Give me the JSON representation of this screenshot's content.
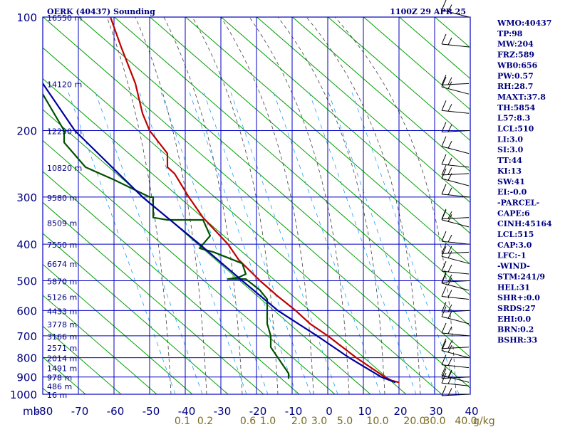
{
  "header": {
    "left_title": "OERK (40437) Sounding",
    "right_title": "1100Z 29 APR 25"
  },
  "chart_data": {
    "type": "line",
    "chart_kind": "skew-T log-P sounding",
    "x_unit_corner_label": "mb",
    "x_ticks": [
      -80,
      -70,
      -60,
      -50,
      -40,
      -30,
      -20,
      -10,
      0,
      10,
      20,
      30,
      40
    ],
    "x_tick_labels": [
      "-80",
      "-70",
      "-60",
      "-50",
      "-40",
      "-30",
      "-20",
      "-10",
      "0",
      "10",
      "20",
      "30",
      "40"
    ],
    "xlim": [
      -80,
      40
    ],
    "y_pressure_levels": [
      100,
      200,
      300,
      400,
      500,
      600,
      700,
      800,
      900,
      1000
    ],
    "y_tick_labels": [
      "100",
      "200",
      "300",
      "400",
      "500",
      "600",
      "700",
      "800",
      "900",
      "1000"
    ],
    "ylim_mb": [
      100,
      1000
    ],
    "y_scale": "log",
    "height_labels": [
      {
        "p": 100,
        "label": "16550 m"
      },
      {
        "p": 150,
        "label": "14120 m"
      },
      {
        "p": 200,
        "label": "12290 m"
      },
      {
        "p": 250,
        "label": "10820 m"
      },
      {
        "p": 300,
        "label": "9580 m"
      },
      {
        "p": 350,
        "label": "8509 m"
      },
      {
        "p": 400,
        "label": "7550 m"
      },
      {
        "p": 450,
        "label": "6674 m"
      },
      {
        "p": 500,
        "label": "5870 m"
      },
      {
        "p": 550,
        "label": "5126 m"
      },
      {
        "p": 600,
        "label": "4433 m"
      },
      {
        "p": 650,
        "label": "3778 m"
      },
      {
        "p": 700,
        "label": "3166 m"
      },
      {
        "p": 750,
        "label": "2571 m"
      },
      {
        "p": 800,
        "label": "2014 m"
      },
      {
        "p": 850,
        "label": "1491 m"
      },
      {
        "p": 900,
        "label": "978 m"
      },
      {
        "p": 950,
        "label": "486 m"
      },
      {
        "p": 1000,
        "label": "16 m"
      }
    ],
    "mixing_ratio_labels": [
      "0.1",
      "0.2",
      "0.6",
      "1.0",
      "2.0",
      "3.0",
      "5.0",
      "10.0",
      "20.0",
      "30.0",
      "40.0"
    ],
    "mixing_ratio_unit": "g/kg",
    "series": [
      {
        "role": "temperature",
        "color": "#c00000",
        "points": [
          {
            "p": 100,
            "x": -61
          },
          {
            "p": 120,
            "x": -58
          },
          {
            "p": 150,
            "x": -54
          },
          {
            "p": 180,
            "x": -52
          },
          {
            "p": 200,
            "x": -50
          },
          {
            "p": 230,
            "x": -45
          },
          {
            "p": 250,
            "x": -45
          },
          {
            "p": 260,
            "x": -43
          },
          {
            "p": 300,
            "x": -39
          },
          {
            "p": 340,
            "x": -35
          },
          {
            "p": 400,
            "x": -28
          },
          {
            "p": 440,
            "x": -25
          },
          {
            "p": 500,
            "x": -19
          },
          {
            "p": 550,
            "x": -14
          },
          {
            "p": 600,
            "x": -9
          },
          {
            "p": 650,
            "x": -5
          },
          {
            "p": 700,
            "x": 0
          },
          {
            "p": 800,
            "x": 8
          },
          {
            "p": 900,
            "x": 16
          },
          {
            "p": 920,
            "x": 18
          },
          {
            "p": 930,
            "x": 20
          }
        ]
      },
      {
        "role": "dewpoint",
        "color": "#005000",
        "points": [
          {
            "p": 160,
            "x": -80
          },
          {
            "p": 200,
            "x": -74
          },
          {
            "p": 215,
            "x": -74
          },
          {
            "p": 250,
            "x": -68
          },
          {
            "p": 270,
            "x": -60
          },
          {
            "p": 300,
            "x": -50
          },
          {
            "p": 300,
            "x": -49
          },
          {
            "p": 340,
            "x": -49
          },
          {
            "p": 345,
            "x": -45
          },
          {
            "p": 345,
            "x": -35
          },
          {
            "p": 380,
            "x": -33
          },
          {
            "p": 410,
            "x": -36
          },
          {
            "p": 420,
            "x": -32
          },
          {
            "p": 450,
            "x": -24
          },
          {
            "p": 480,
            "x": -23
          },
          {
            "p": 490,
            "x": -25
          },
          {
            "p": 495,
            "x": -28
          },
          {
            "p": 495,
            "x": -23
          },
          {
            "p": 530,
            "x": -19
          },
          {
            "p": 560,
            "x": -17
          },
          {
            "p": 600,
            "x": -17
          },
          {
            "p": 650,
            "x": -17
          },
          {
            "p": 700,
            "x": -16
          },
          {
            "p": 750,
            "x": -16
          },
          {
            "p": 800,
            "x": -14
          },
          {
            "p": 880,
            "x": -11
          },
          {
            "p": 910,
            "x": -11
          }
        ]
      },
      {
        "role": "parcel",
        "color": "#0000a0",
        "points": [
          {
            "p": 150,
            "x": -80
          },
          {
            "p": 200,
            "x": -71
          },
          {
            "p": 300,
            "x": -52
          },
          {
            "p": 400,
            "x": -36
          },
          {
            "p": 500,
            "x": -24
          },
          {
            "p": 600,
            "x": -14
          },
          {
            "p": 700,
            "x": -3
          },
          {
            "p": 800,
            "x": 6
          },
          {
            "p": 900,
            "x": 15
          },
          {
            "p": 930,
            "x": 19
          }
        ]
      }
    ],
    "wind_barbs_mb": [
      100,
      120,
      150,
      160,
      180,
      200,
      230,
      250,
      260,
      280,
      300,
      340,
      360,
      400,
      420,
      450,
      480,
      500,
      530,
      560,
      600,
      650,
      700,
      750,
      800,
      850,
      900,
      930,
      950,
      1000
    ]
  },
  "indices": [
    "WMO:40437",
    "TP:98",
    "MW:204",
    "FRZ:589",
    "WB0:656",
    "PW:0.57",
    "RH:28.7",
    "MAXT:37.8",
    "TH:5854",
    "L57:8.3",
    "LCL:510",
    "LI:3.0",
    "SI:3.0",
    "TT:44",
    "KI:13",
    "SW:41",
    "EI:-0.0",
    "-PARCEL-",
    "CAPE:6",
    "CINH:45164",
    "LCL:515",
    "CAP:3.0",
    "LFC:-1",
    "-WIND-",
    "STM:241/9",
    "HEL:31",
    "SHR+:0.0",
    "SRDS:27",
    "EHI:0.0",
    "BRN:0.2",
    "BSHR:33"
  ],
  "colors": {
    "grid": "#0000c0",
    "dry_adiabat": "#00a000",
    "moist_adiabat": "#404040",
    "mixing_ratio": "#20a0ff",
    "text": "#000080"
  }
}
